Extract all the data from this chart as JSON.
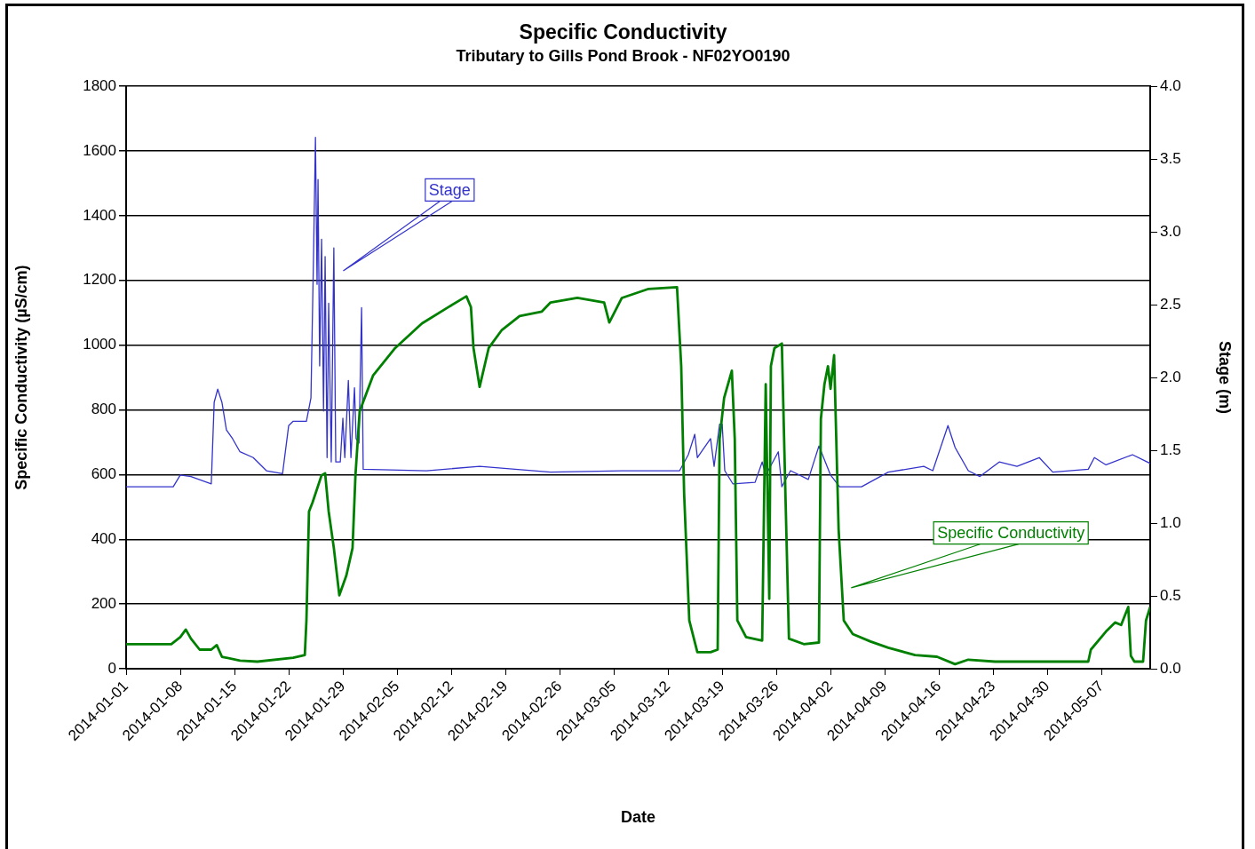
{
  "chart_data": {
    "type": "line",
    "title": "Specific Conductivity",
    "subtitle": "Tributary to Gills Pond Brook - NF02YO0190",
    "xlabel": "Date",
    "ylabel": "Specific Conductivity (µS/cm)",
    "y2label": "Stage (m)",
    "xlim": [
      "2014-01-01",
      "2014-05-13T07:00"
    ],
    "xticks": [
      "2014-01-01",
      "2014-01-08",
      "2014-01-15",
      "2014-01-22",
      "2014-01-29",
      "2014-02-05",
      "2014-02-12",
      "2014-02-19",
      "2014-02-26",
      "2014-03-05",
      "2014-03-12",
      "2014-03-19",
      "2014-03-26",
      "2014-04-02",
      "2014-04-09",
      "2014-04-16",
      "2014-04-23",
      "2014-04-30",
      "2014-05-07"
    ],
    "ylim": [
      0,
      1800
    ],
    "yticks": [
      0,
      200,
      400,
      600,
      800,
      1000,
      1200,
      1400,
      1600,
      1800
    ],
    "y2lim": [
      0,
      4
    ],
    "y2ticks": [
      {
        "value": 0,
        "label": "0.0"
      },
      {
        "value": 0.5,
        "label": "0.5"
      },
      {
        "value": 1,
        "label": "1.0"
      },
      {
        "value": 1.5,
        "label": "1.5"
      },
      {
        "value": 2,
        "label": "2.0"
      },
      {
        "value": 2.5,
        "label": "2.5"
      },
      {
        "value": 3,
        "label": "3.0"
      },
      {
        "value": 3.5,
        "label": "3.5"
      },
      {
        "value": 4,
        "label": "4.0"
      }
    ],
    "grid": "y",
    "legend": false,
    "marker": "none",
    "line_style": "solid",
    "series": [
      {
        "name": "Specific Conductivity",
        "color": "#008000",
        "x": [
          "2014-01-01T00:00",
          "2014-01-06T20:00",
          "2014-01-08T00:00",
          "2014-01-08T17:00",
          "2014-01-09T09:00",
          "2014-01-10T12:00",
          "2014-01-12T00:00",
          "2014-01-12T17:00",
          "2014-01-13T09:00",
          "2014-01-15T17:00",
          "2014-01-17T23:00",
          "2014-01-22T14:00",
          "2014-01-24T02:00",
          "2014-01-24T07:00",
          "2014-01-24T15:00",
          "2014-01-25T02:00",
          "2014-01-26T06:00",
          "2014-01-26T17:00",
          "2014-01-27T04:00",
          "2014-01-27T20:00",
          "2014-01-28T13:00",
          "2014-01-29T11:00",
          "2014-01-30T06:00",
          "2014-01-30T15:00",
          "2014-01-31T04:00",
          "2014-02-01T22:00",
          "2014-02-04T18:00",
          "2014-02-08T05:00",
          "2014-02-11T16:00",
          "2014-02-13T23:00",
          "2014-02-14T13:00",
          "2014-02-14T21:00",
          "2014-02-15T16:00",
          "2014-02-16T20:00",
          "2014-02-18T13:00",
          "2014-02-20T20:00",
          "2014-02-23T17:00",
          "2014-02-24T20:00",
          "2014-02-28T07:00",
          "2014-03-03T18:00",
          "2014-03-04T10:00",
          "2014-03-06T01:00",
          "2014-03-09T12:00",
          "2014-03-13T04:00",
          "2014-03-13T17:00",
          "2014-03-14T02:00",
          "2014-03-14T18:00",
          "2014-03-15T19:00",
          "2014-03-17T12:00",
          "2014-03-18T10:00",
          "2014-03-18T16:00",
          "2014-03-19T06:00",
          "2014-03-20T06:00",
          "2014-03-20T15:00",
          "2014-03-20T23:00",
          "2014-03-22T02:00",
          "2014-03-24T04:00",
          "2014-03-24T15:00",
          "2014-03-25T02:00",
          "2014-03-25T07:00",
          "2014-03-25T18:00",
          "2014-03-26T17:00",
          "2014-03-27T04:00",
          "2014-03-27T15:00",
          "2014-03-29T13:00",
          "2014-03-31T12:00",
          "2014-03-31T18:00",
          "2014-04-01T05:00",
          "2014-04-01T16:00",
          "2014-04-02T00:00",
          "2014-04-02T11:00",
          "2014-04-03T01:00",
          "2014-04-03T17:00",
          "2014-04-04T21:00",
          "2014-04-07T04:00",
          "2014-04-09T11:00",
          "2014-04-12T22:00",
          "2014-04-15T18:00",
          "2014-04-18T02:00",
          "2014-04-19T19:00",
          "2014-04-23T06:00",
          "2014-05-05T07:00",
          "2014-05-05T15:00",
          "2014-05-07T14:00",
          "2014-05-08T18:00",
          "2014-05-09T13:00",
          "2014-05-10T00:00",
          "2014-05-10T11:00",
          "2014-05-10T19:00",
          "2014-05-11T06:00",
          "2014-05-12T09:00",
          "2014-05-12T18:00",
          "2014-05-13T07:00"
        ],
        "values": [
          76,
          76,
          98,
          121,
          93,
          59,
          59,
          73,
          37,
          25,
          22,
          34,
          42,
          149,
          486,
          514,
          598,
          604,
          486,
          373,
          227,
          289,
          373,
          598,
          795,
          907,
          991,
          1067,
          1118,
          1151,
          1118,
          991,
          871,
          991,
          1047,
          1090,
          1104,
          1132,
          1146,
          1132,
          1070,
          1146,
          1174,
          1179,
          935,
          542,
          149,
          51,
          51,
          59,
          710,
          837,
          921,
          710,
          149,
          98,
          87,
          879,
          216,
          935,
          991,
          1005,
          542,
          93,
          76,
          81,
          772,
          879,
          935,
          865,
          969,
          430,
          149,
          107,
          84,
          65,
          42,
          37,
          14,
          28,
          22,
          22,
          59,
          115,
          143,
          135,
          163,
          191,
          40,
          22,
          22,
          149,
          191
        ]
      },
      {
        "name": "Stage",
        "color": "#3333cc",
        "axis": "y2",
        "x": [
          "2014-01-01T00:00",
          "2014-01-07T02:00",
          "2014-01-08T00:00",
          "2014-01-09T09:00",
          "2014-01-12T00:00",
          "2014-01-12T09:00",
          "2014-01-12T20:00",
          "2014-01-13T09:00",
          "2014-01-13T23:00",
          "2014-01-14T18:00",
          "2014-01-15T17:00",
          "2014-01-17T10:00",
          "2014-01-19T03:00",
          "2014-01-21T05:00",
          "2014-01-22T00:00",
          "2014-01-22T14:00",
          "2014-01-24T07:00",
          "2014-01-24T21:00",
          "2014-01-25T05:00",
          "2014-01-25T11:00",
          "2014-01-25T16:00",
          "2014-01-25T19:00",
          "2014-01-26T00:00",
          "2014-01-26T06:00",
          "2014-01-26T12:00",
          "2014-01-26T17:00",
          "2014-01-26T23:00",
          "2014-01-27T04:00",
          "2014-01-27T12:00",
          "2014-01-27T20:00",
          "2014-01-28T02:00",
          "2014-01-28T16:00",
          "2014-01-29T00:00",
          "2014-01-29T06:00",
          "2014-01-29T17:00",
          "2014-01-30T01:00",
          "2014-01-30T12:00",
          "2014-01-30T17:00",
          "2014-01-31T02:00",
          "2014-01-31T10:00",
          "2014-01-31T15:00",
          "2014-02-08T19:00",
          "2014-02-15T16:00",
          "2014-02-24T20:00",
          "2014-03-06T01:00",
          "2014-03-13T12:00",
          "2014-03-14T15:00",
          "2014-03-15T11:00",
          "2014-03-15T19:00",
          "2014-03-17T12:00",
          "2014-03-17T23:00",
          "2014-03-18T16:00",
          "2014-03-19T00:00",
          "2014-03-19T08:00",
          "2014-03-20T09:00",
          "2014-03-23T06:00",
          "2014-03-24T04:00",
          "2014-03-24T15:00",
          "2014-03-26T06:00",
          "2014-03-26T17:00",
          "2014-03-27T20:00",
          "2014-03-30T03:00",
          "2014-03-31T12:00",
          "2014-04-02T00:00",
          "2014-04-03T04:00",
          "2014-04-06T00:00",
          "2014-04-09T11:00",
          "2014-04-14T01:00",
          "2014-04-15T05:00",
          "2014-04-17T04:00",
          "2014-04-18T02:00",
          "2014-04-19T19:00",
          "2014-04-21T07:00",
          "2014-04-23T19:00",
          "2014-04-26T02:00",
          "2014-04-28T23:00",
          "2014-04-30T17:00",
          "2014-05-05T07:00",
          "2014-05-06T02:00",
          "2014-05-07T14:00",
          "2014-05-11T00:00",
          "2014-05-13T07:00"
        ],
        "values": [
          1.25,
          1.25,
          1.33,
          1.32,
          1.27,
          1.83,
          1.92,
          1.83,
          1.64,
          1.58,
          1.49,
          1.45,
          1.36,
          1.34,
          1.67,
          1.7,
          1.7,
          1.86,
          2.83,
          3.65,
          2.64,
          3.36,
          2.08,
          2.95,
          1.77,
          2.83,
          1.45,
          2.51,
          1.42,
          2.89,
          1.42,
          1.42,
          1.72,
          1.45,
          1.98,
          1.45,
          1.93,
          1.58,
          1.55,
          2.48,
          1.37,
          1.36,
          1.39,
          1.35,
          1.36,
          1.36,
          1.47,
          1.61,
          1.45,
          1.58,
          1.39,
          1.68,
          1.68,
          1.36,
          1.27,
          1.28,
          1.42,
          1.33,
          1.49,
          1.25,
          1.36,
          1.3,
          1.53,
          1.33,
          1.25,
          1.25,
          1.35,
          1.39,
          1.36,
          1.67,
          1.52,
          1.36,
          1.32,
          1.42,
          1.39,
          1.45,
          1.35,
          1.37,
          1.45,
          1.4,
          1.47,
          1.41
        ]
      }
    ]
  }
}
